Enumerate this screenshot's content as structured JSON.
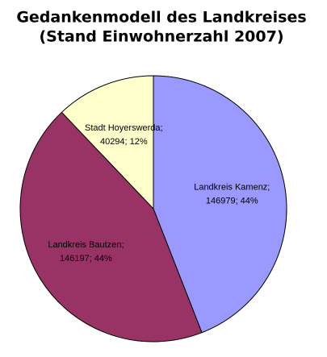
{
  "chart_data": {
    "type": "pie",
    "title": [
      "Gedankenmodell des Landkreises",
      "(Stand Einwohnerzahl 2007)"
    ],
    "categories": [
      "Landkreis Kamenz;",
      "Landkreis Bautzen;",
      "Stadt Hoyerswerda;"
    ],
    "values": [
      146979,
      146197,
      40294
    ],
    "value_labels": [
      "146979; 44%",
      "146197; 44%",
      "40294; 12%"
    ],
    "colors": [
      "#9999ff",
      "#993366",
      "#ffffcc"
    ]
  }
}
